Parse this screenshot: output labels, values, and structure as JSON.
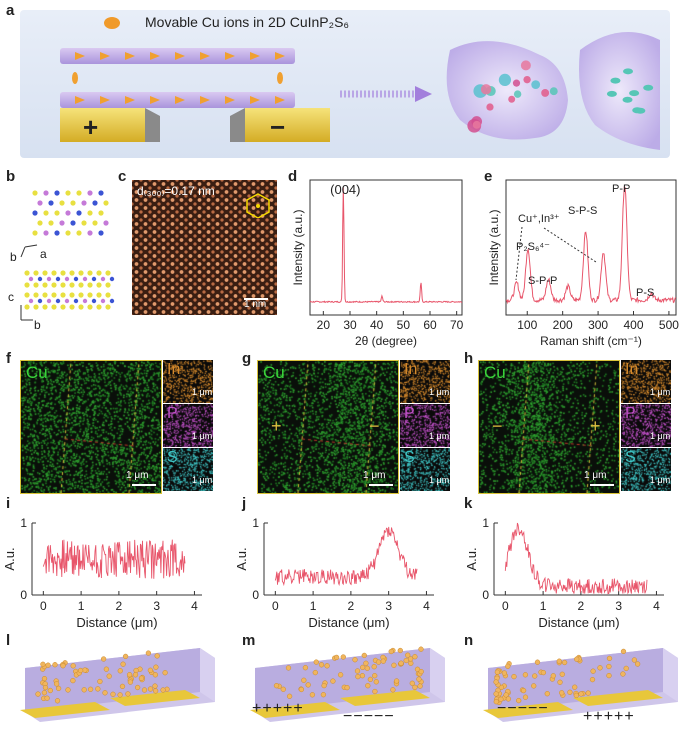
{
  "panel_letters": {
    "a": "a",
    "b": "b",
    "c": "c",
    "d": "d",
    "e": "e",
    "f": "f",
    "g": "g",
    "h": "h",
    "i": "i",
    "j": "j",
    "k": "k",
    "l": "l",
    "m": "m",
    "n": "n"
  },
  "panel_a": {
    "legend_text": "Movable Cu ions in 2D CuInP₂S₆",
    "plus": "+",
    "minus": "−"
  },
  "panel_b": {
    "axis_b_a": "b",
    "axis_a": "a",
    "axis_c": "c",
    "axis_b2": "b"
  },
  "panel_c": {
    "d_label": "d₍₃₀₀₎=0.17 nm",
    "scale": "1 nm"
  },
  "eds": {
    "cu": "Cu",
    "in": "In",
    "p": "P",
    "s": "S",
    "scale": "1 μm",
    "g_left_sign": "+",
    "g_right_sign": "−",
    "h_left_sign": "−",
    "h_right_sign": "+"
  },
  "devices": {
    "m_left": "+++++",
    "m_right": "−−−−−",
    "n_left": "−−−−−",
    "n_right": "+++++"
  },
  "chart_data": [
    {
      "id": "d",
      "type": "line",
      "xlabel": "2θ (degree)",
      "ylabel": "Intensity (a.u.)",
      "xlim": [
        15,
        72
      ],
      "xticks": [
        20,
        30,
        40,
        50,
        60,
        70
      ],
      "annotations": [
        {
          "text": "(004)",
          "x": 27.5
        }
      ],
      "peaks": [
        {
          "x": 27.5,
          "y": 1.0
        },
        {
          "x": 42.0,
          "y": 0.05
        },
        {
          "x": 56.6,
          "y": 0.17
        }
      ],
      "color": "#e8566b"
    },
    {
      "id": "e",
      "type": "line",
      "xlabel": "Raman shift (cm⁻¹)",
      "ylabel": "Intensity (a.u.)",
      "xlim": [
        40,
        520
      ],
      "xticks": [
        100,
        200,
        300,
        400,
        500
      ],
      "annotations": [
        {
          "text": "Cu⁺,In³⁺"
        },
        {
          "text": "P₂S₆⁴⁻"
        },
        {
          "text": "S-P-P"
        },
        {
          "text": "S-P-S"
        },
        {
          "text": "P-P"
        },
        {
          "text": "P-S"
        }
      ],
      "peaks": [
        {
          "x": 70,
          "y": 0.15
        },
        {
          "x": 102,
          "y": 0.45
        },
        {
          "x": 160,
          "y": 0.18
        },
        {
          "x": 215,
          "y": 0.12
        },
        {
          "x": 265,
          "y": 0.6
        },
        {
          "x": 315,
          "y": 0.42
        },
        {
          "x": 375,
          "y": 1.0
        },
        {
          "x": 450,
          "y": 0.06
        }
      ],
      "color": "#e8566b"
    },
    {
      "id": "i",
      "type": "line",
      "xlabel": "Distance (μm)",
      "ylabel": "A.u.",
      "xlim": [
        -0.3,
        4.2
      ],
      "ylim": [
        0,
        1
      ],
      "xticks": [
        0,
        1,
        2,
        3,
        4
      ],
      "yticks": [
        0,
        1
      ],
      "profile": "uniform",
      "x_range": [
        0,
        3.75
      ],
      "level": 0.5,
      "color": "#e8566b"
    },
    {
      "id": "j",
      "type": "line",
      "xlabel": "Distance (μm)",
      "ylabel": "A.u.",
      "xlim": [
        -0.3,
        4.2
      ],
      "ylim": [
        0,
        1
      ],
      "xticks": [
        0,
        1,
        2,
        3,
        4
      ],
      "yticks": [
        0,
        1
      ],
      "profile": "right-peak",
      "x_range": [
        0,
        3.75
      ],
      "base": 0.25,
      "peak_x": 3.0,
      "peak_y": 0.9,
      "color": "#e8566b"
    },
    {
      "id": "k",
      "type": "line",
      "xlabel": "Distance (μm)",
      "ylabel": "A.u.",
      "xlim": [
        -0.3,
        4.2
      ],
      "ylim": [
        0,
        1
      ],
      "xticks": [
        0,
        1,
        2,
        3,
        4
      ],
      "yticks": [
        0,
        1
      ],
      "profile": "left-peak",
      "x_range": [
        0,
        3.75
      ],
      "base": 0.12,
      "peak_x": 0.35,
      "peak_y": 0.92,
      "color": "#e8566b"
    }
  ]
}
